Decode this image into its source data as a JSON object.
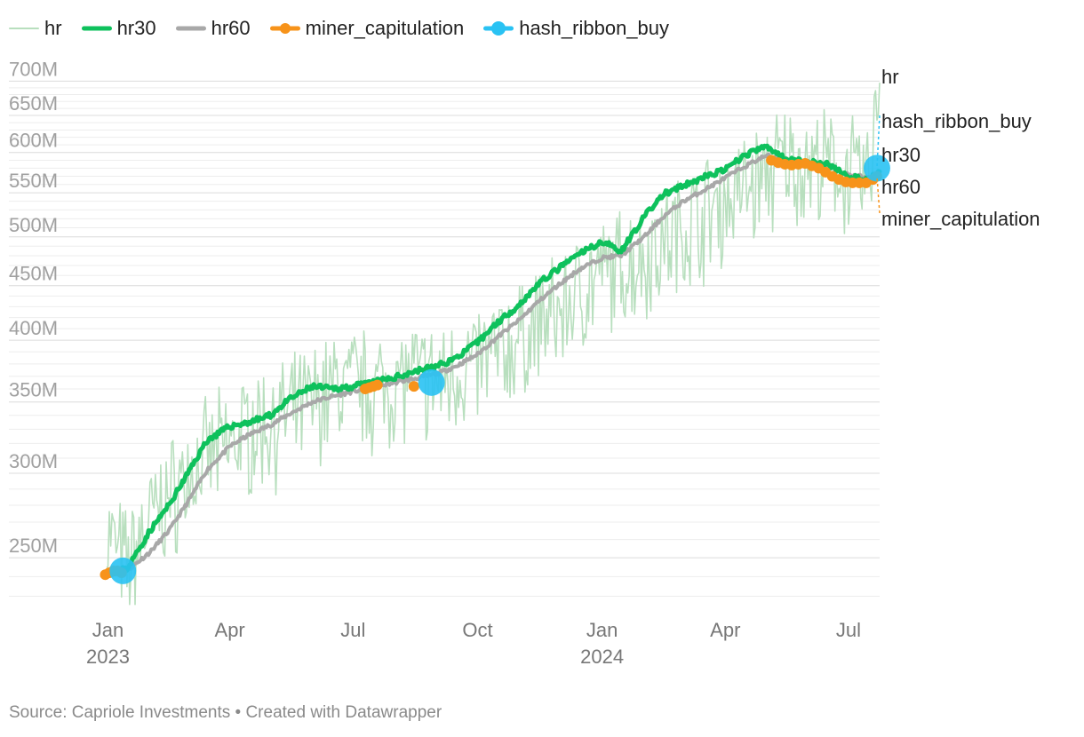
{
  "chart_data": {
    "type": "line",
    "title": "",
    "xlabel": "",
    "ylabel": "",
    "y_scale": "log",
    "ylim": [
      225000000,
      710000000
    ],
    "x_range": [
      "2022-12-31",
      "2024-07-24"
    ],
    "grid": true,
    "legend_position": "top-left",
    "y_ticks": [
      {
        "value": 250000000,
        "label": "250M"
      },
      {
        "value": 300000000,
        "label": "300M"
      },
      {
        "value": 350000000,
        "label": "350M"
      },
      {
        "value": 400000000,
        "label": "400M"
      },
      {
        "value": 450000000,
        "label": "450M"
      },
      {
        "value": 500000000,
        "label": "500M"
      },
      {
        "value": 550000000,
        "label": "550M"
      },
      {
        "value": 600000000,
        "label": "600M"
      },
      {
        "value": 650000000,
        "label": "650M"
      },
      {
        "value": 700000000,
        "label": "700M"
      }
    ],
    "x_ticks": [
      {
        "date": "2023-01-01",
        "label": "Jan",
        "year": "2023"
      },
      {
        "date": "2023-04-01",
        "label": "Apr",
        "year": ""
      },
      {
        "date": "2023-07-01",
        "label": "Jul",
        "year": ""
      },
      {
        "date": "2023-10-01",
        "label": "Oct",
        "year": ""
      },
      {
        "date": "2024-01-01",
        "label": "Jan",
        "year": "2024"
      },
      {
        "date": "2024-04-01",
        "label": "Apr",
        "year": ""
      },
      {
        "date": "2024-07-01",
        "label": "Jul",
        "year": ""
      }
    ],
    "series": [
      {
        "name": "hr",
        "color": "#b8dfbe",
        "style": "line",
        "description_points": "noisy daily hash rate",
        "x": [
          "2022-12-31",
          "2023-01-15",
          "2023-01-31",
          "2023-02-15",
          "2023-03-01",
          "2023-03-15",
          "2023-04-01",
          "2023-04-15",
          "2023-05-01",
          "2023-05-15",
          "2023-06-01",
          "2023-06-15",
          "2023-07-01",
          "2023-07-15",
          "2023-08-01",
          "2023-08-15",
          "2023-09-01",
          "2023-09-15",
          "2023-10-01",
          "2023-10-15",
          "2023-11-01",
          "2023-11-15",
          "2023-12-01",
          "2023-12-15",
          "2024-01-01",
          "2024-01-15",
          "2024-02-01",
          "2024-02-15",
          "2024-03-01",
          "2024-03-15",
          "2024-04-01",
          "2024-04-15",
          "2024-05-01",
          "2024-05-15",
          "2024-06-01",
          "2024-06-15",
          "2024-07-01",
          "2024-07-15",
          "2024-07-24"
        ],
        "values": [
          265000000,
          245000000,
          270000000,
          285000000,
          300000000,
          310000000,
          320000000,
          330000000,
          335000000,
          340000000,
          350000000,
          360000000,
          365000000,
          360000000,
          365000000,
          370000000,
          365000000,
          375000000,
          380000000,
          390000000,
          400000000,
          415000000,
          425000000,
          445000000,
          460000000,
          470000000,
          480000000,
          495000000,
          510000000,
          525000000,
          540000000,
          555000000,
          570000000,
          590000000,
          585000000,
          580000000,
          575000000,
          560000000,
          700000000
        ]
      },
      {
        "name": "hr30",
        "color": "#0ec15c",
        "style": "line",
        "x": [
          "2023-01-01",
          "2023-01-15",
          "2023-02-01",
          "2023-02-15",
          "2023-03-01",
          "2023-03-15",
          "2023-04-01",
          "2023-04-15",
          "2023-05-01",
          "2023-05-15",
          "2023-06-01",
          "2023-06-15",
          "2023-07-01",
          "2023-07-15",
          "2023-08-01",
          "2023-08-15",
          "2023-09-01",
          "2023-09-15",
          "2023-10-01",
          "2023-10-15",
          "2023-11-01",
          "2023-11-15",
          "2023-12-01",
          "2023-12-15",
          "2024-01-01",
          "2024-01-15",
          "2024-02-01",
          "2024-02-15",
          "2024-03-01",
          "2024-03-15",
          "2024-04-01",
          "2024-04-15",
          "2024-05-01",
          "2024-05-15",
          "2024-06-01",
          "2024-06-15",
          "2024-07-01",
          "2024-07-15",
          "2024-07-24"
        ],
        "values": [
          242000000,
          244000000,
          265000000,
          280000000,
          300000000,
          322000000,
          332000000,
          335000000,
          340000000,
          352000000,
          362000000,
          360000000,
          362000000,
          365000000,
          369000000,
          374000000,
          378000000,
          385000000,
          398000000,
          415000000,
          432000000,
          452000000,
          468000000,
          482000000,
          495000000,
          485000000,
          522000000,
          548000000,
          558000000,
          568000000,
          578000000,
          596000000,
          608000000,
          592000000,
          588000000,
          585000000,
          570000000,
          565000000,
          575000000
        ]
      },
      {
        "name": "hr60",
        "color": "#a8a8a8",
        "style": "line",
        "x": [
          "2023-01-01",
          "2023-01-15",
          "2023-02-01",
          "2023-02-15",
          "2023-03-01",
          "2023-03-15",
          "2023-04-01",
          "2023-04-15",
          "2023-05-01",
          "2023-05-15",
          "2023-06-01",
          "2023-06-15",
          "2023-07-01",
          "2023-07-15",
          "2023-08-01",
          "2023-08-15",
          "2023-09-01",
          "2023-09-15",
          "2023-10-01",
          "2023-10-15",
          "2023-11-01",
          "2023-11-15",
          "2023-12-01",
          "2023-12-15",
          "2024-01-01",
          "2024-01-15",
          "2024-02-01",
          "2024-02-15",
          "2024-03-01",
          "2024-03-15",
          "2024-04-01",
          "2024-04-15",
          "2024-05-01",
          "2024-05-15",
          "2024-06-01",
          "2024-06-15",
          "2024-07-01",
          "2024-07-15",
          "2024-07-24"
        ],
        "values": [
          241000000,
          243000000,
          253000000,
          265000000,
          282000000,
          302000000,
          318000000,
          326000000,
          333000000,
          341000000,
          350000000,
          354000000,
          358000000,
          361000000,
          365000000,
          368000000,
          372000000,
          378000000,
          388000000,
          402000000,
          418000000,
          435000000,
          452000000,
          466000000,
          478000000,
          480000000,
          500000000,
          522000000,
          540000000,
          552000000,
          568000000,
          582000000,
          596000000,
          592000000,
          586000000,
          582000000,
          572000000,
          568000000,
          572000000
        ]
      },
      {
        "name": "miner_capitulation",
        "color": "#f7931a",
        "style": "dots",
        "x": [
          "2022-12-30",
          "2023-01-02",
          "2023-01-05",
          "2023-01-08",
          "2023-01-11",
          "2023-07-10",
          "2023-07-13",
          "2023-07-16",
          "2023-07-19",
          "2023-08-15",
          "2024-05-05",
          "2024-05-10",
          "2024-05-15",
          "2024-05-20",
          "2024-05-25",
          "2024-05-30",
          "2024-06-04",
          "2024-06-09",
          "2024-06-14",
          "2024-06-19",
          "2024-06-24",
          "2024-06-29",
          "2024-07-04",
          "2024-07-09",
          "2024-07-14",
          "2024-07-19",
          "2024-07-22"
        ],
        "values": [
          241000000,
          242000000,
          243000000,
          243000000,
          242000000,
          360000000,
          361000000,
          362000000,
          363000000,
          362000000,
          590000000,
          587000000,
          585000000,
          584000000,
          585000000,
          586000000,
          583000000,
          580000000,
          575000000,
          570000000,
          566000000,
          563000000,
          562000000,
          562000000,
          562000000,
          566000000,
          570000000
        ]
      },
      {
        "name": "hash_ribbon_buy",
        "color": "#29c2f3",
        "style": "dots",
        "x": [
          "2023-01-12",
          "2023-08-28",
          "2024-07-22"
        ],
        "values": [
          243000000,
          365000000,
          580000000
        ]
      }
    ]
  },
  "legend": [
    {
      "label": "hr",
      "color": "#b8dfbe",
      "kind": "line-thin"
    },
    {
      "label": "hr30",
      "color": "#0ec15c",
      "kind": "line-thick"
    },
    {
      "label": "hr60",
      "color": "#a8a8a8",
      "kind": "line-thick"
    },
    {
      "label": "miner_capitulation",
      "color": "#f7931a",
      "kind": "line-dot"
    },
    {
      "label": "hash_ribbon_buy",
      "color": "#29c2f3",
      "kind": "line-dot"
    }
  ],
  "end_labels": [
    {
      "series": "hr",
      "text": "hr"
    },
    {
      "series": "hash_ribbon_buy",
      "text": "hash_ribbon_buy"
    },
    {
      "series": "hr30",
      "text": "hr30"
    },
    {
      "series": "hr60",
      "text": "hr60"
    },
    {
      "series": "miner_capitulation",
      "text": "miner_capitulation"
    }
  ],
  "footer": {
    "source": "Source: Capriole Investments",
    "separator": " • ",
    "created": "Created with Datawrapper"
  }
}
